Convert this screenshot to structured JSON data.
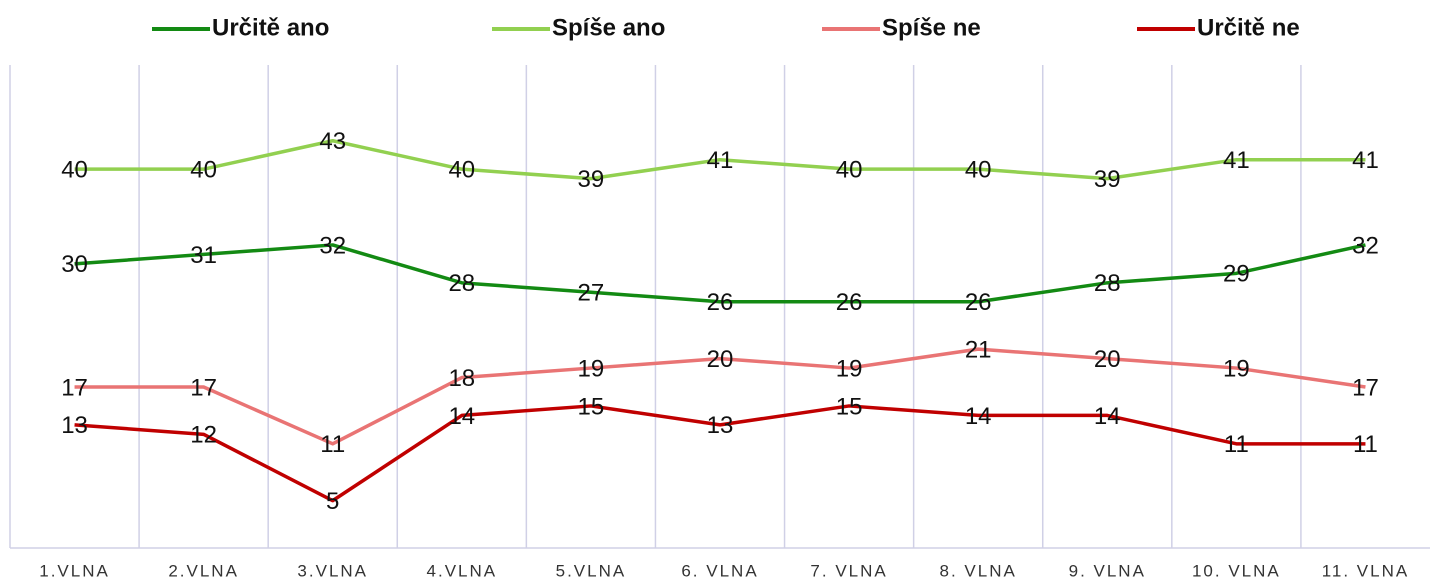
{
  "chart_data": {
    "type": "line",
    "categories": [
      "1.VLNA",
      "2.VLNA",
      "3.VLNA",
      "4.VLNA",
      "5.VLNA",
      "6. VLNA",
      "7. VLNA",
      "8. VLNA",
      "9. VLNA",
      "10. VLNA",
      "11. VLNA"
    ],
    "series": [
      {
        "name": "Určitě ano",
        "color": "#138a13",
        "values": [
          30,
          31,
          32,
          28,
          27,
          26,
          26,
          26,
          28,
          29,
          32
        ]
      },
      {
        "name": "Spíše ano",
        "color": "#92d050",
        "values": [
          40,
          40,
          43,
          40,
          39,
          41,
          40,
          40,
          39,
          41,
          41
        ]
      },
      {
        "name": "Spíše ne",
        "color": "#e97474",
        "values": [
          17,
          17,
          11,
          18,
          19,
          20,
          19,
          21,
          20,
          19,
          17
        ]
      },
      {
        "name": "Určitě ne",
        "color": "#c00000",
        "values": [
          13,
          12,
          5,
          14,
          15,
          13,
          15,
          14,
          14,
          11,
          11
        ]
      }
    ],
    "ylim": [
      0,
      51
    ],
    "legend": "top"
  }
}
